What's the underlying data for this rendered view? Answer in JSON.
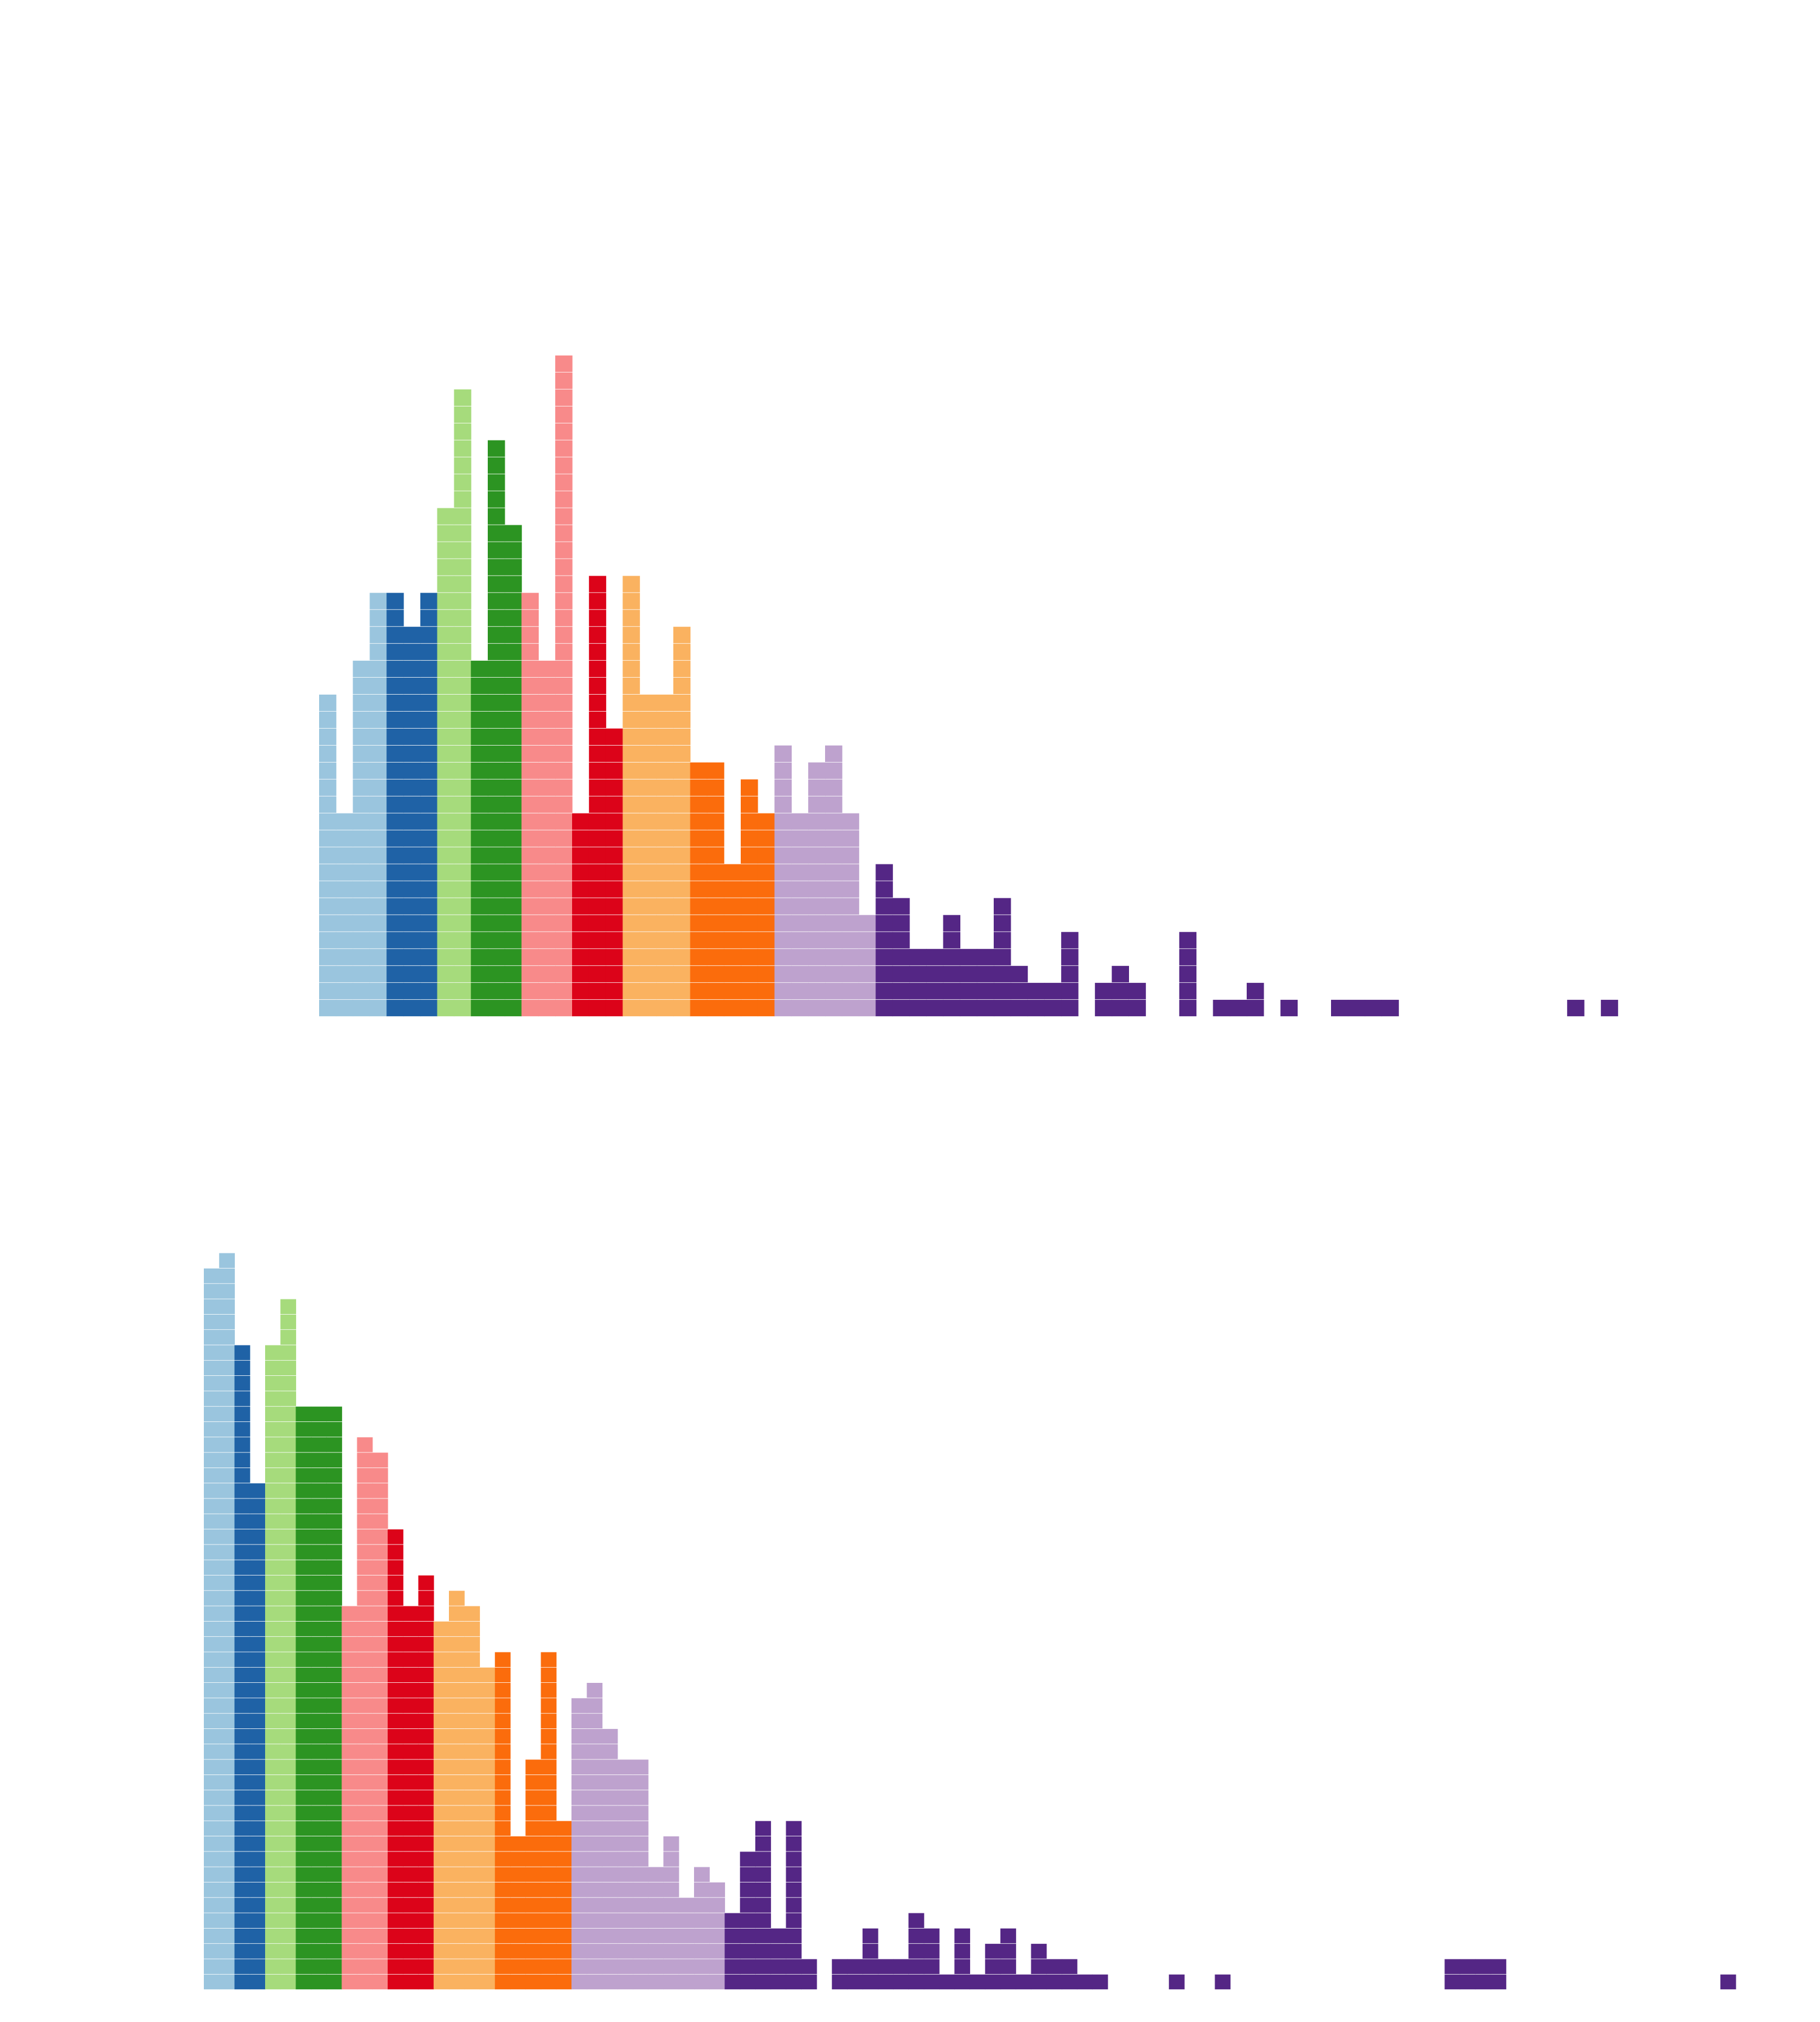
{
  "chart_data": [
    {
      "type": "bar",
      "stacked_unit_blocks": true,
      "x": [
        0,
        1,
        2,
        3,
        4,
        5,
        6,
        7,
        8,
        9,
        10,
        11,
        12,
        13,
        14,
        15,
        16,
        17,
        18,
        19,
        20,
        21,
        22,
        23,
        24,
        25,
        26,
        27,
        28,
        29,
        30,
        31,
        32,
        33,
        34,
        35,
        36,
        37,
        38,
        39,
        40,
        41,
        42,
        43,
        44,
        45,
        46,
        47,
        48,
        49,
        50,
        51,
        52,
        53,
        54,
        55,
        56,
        57,
        58,
        59,
        60,
        61,
        62,
        63,
        64,
        65,
        66,
        67,
        68,
        69,
        70,
        71,
        72,
        73,
        74,
        75,
        76
      ],
      "values": [
        19,
        12,
        21,
        25,
        25,
        23,
        25,
        30,
        37,
        21,
        34,
        29,
        25,
        21,
        39,
        12,
        26,
        17,
        26,
        19,
        19,
        23,
        15,
        15,
        9,
        14,
        12,
        16,
        12,
        15,
        16,
        12,
        6,
        9,
        7,
        4,
        4,
        6,
        4,
        4,
        7,
        3,
        2,
        2,
        5,
        0,
        2,
        3,
        2,
        0,
        0,
        5,
        0,
        1,
        1,
        2,
        0,
        1,
        0,
        0,
        1,
        1,
        1,
        1,
        0,
        0,
        0,
        0,
        0,
        0,
        0,
        0,
        0,
        0,
        1,
        0,
        1
      ],
      "color_groups": [
        {
          "color": "#9ac5de",
          "count": 4
        },
        {
          "color": "#1f62a6",
          "count": 3
        },
        {
          "color": "#a6db7c",
          "count": 2
        },
        {
          "color": "#2c9422",
          "count": 3
        },
        {
          "color": "#f88a8a",
          "count": 3
        },
        {
          "color": "#dc0319",
          "count": 3
        },
        {
          "color": "#fab260",
          "count": 4
        },
        {
          "color": "#fb6c0c",
          "count": 5
        },
        {
          "color": "#bea2ce",
          "count": 6
        },
        {
          "color": "#542685",
          "count": 44
        }
      ],
      "xlabel": "",
      "ylabel": "",
      "grid": false,
      "legend": "none"
    },
    {
      "type": "bar",
      "stacked_unit_blocks": true,
      "x": [
        0,
        1,
        2,
        3,
        4,
        5,
        6,
        7,
        8,
        9,
        10,
        11,
        12,
        13,
        14,
        15,
        16,
        17,
        18,
        19,
        20,
        21,
        22,
        23,
        24,
        25,
        26,
        27,
        28,
        29,
        30,
        31,
        32,
        33,
        34,
        35,
        36,
        37,
        38,
        39,
        40,
        41,
        42,
        43,
        44,
        45,
        46,
        47,
        48,
        49,
        50,
        51,
        52,
        53,
        54,
        55,
        56,
        57,
        58,
        59,
        60,
        61,
        62,
        63,
        64,
        65,
        66,
        67,
        68,
        69,
        70,
        71,
        72,
        73,
        74,
        75,
        76,
        77,
        78,
        79,
        80,
        81,
        82,
        83,
        84,
        85,
        86,
        87,
        88,
        89,
        90,
        91,
        92,
        93,
        94,
        95,
        96,
        97,
        98,
        99
      ],
      "values": [
        47,
        48,
        42,
        33,
        42,
        45,
        38,
        38,
        38,
        25,
        36,
        35,
        30,
        25,
        27,
        24,
        26,
        25,
        21,
        22,
        10,
        15,
        22,
        11,
        19,
        20,
        17,
        15,
        15,
        8,
        10,
        6,
        8,
        7,
        5,
        9,
        11,
        4,
        11,
        2,
        0,
        2,
        2,
        4,
        2,
        2,
        5,
        4,
        1,
        4,
        1,
        3,
        4,
        1,
        3,
        2,
        2,
        1,
        1,
        0,
        0,
        0,
        0,
        1,
        0,
        0,
        1,
        0,
        0,
        0,
        0,
        0,
        0,
        0,
        0,
        0,
        0,
        0,
        0,
        0,
        0,
        2,
        2,
        2,
        2,
        0,
        0,
        0,
        0,
        0,
        0,
        0,
        0,
        0,
        0,
        0,
        0,
        0,
        0,
        1
      ],
      "color_groups": [
        {
          "color": "#9ac5de",
          "count": 2
        },
        {
          "color": "#1f62a6",
          "count": 2
        },
        {
          "color": "#a6db7c",
          "count": 2
        },
        {
          "color": "#2c9422",
          "count": 3
        },
        {
          "color": "#f88a8a",
          "count": 3
        },
        {
          "color": "#dc0319",
          "count": 3
        },
        {
          "color": "#fab260",
          "count": 4
        },
        {
          "color": "#fb6c0c",
          "count": 5
        },
        {
          "color": "#bea2ce",
          "count": 10
        },
        {
          "color": "#542685",
          "count": 66
        }
      ],
      "xlabel": "",
      "ylabel": "",
      "grid": false,
      "legend": "none"
    }
  ]
}
